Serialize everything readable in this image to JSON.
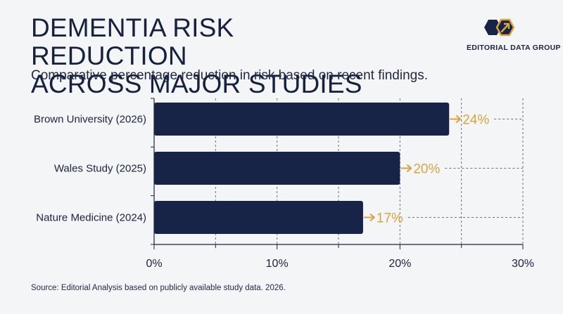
{
  "header": {
    "title_line1": "DEMENTIA RISK REDUCTION",
    "title_line2": "ACROSS MAJOR STUDIES",
    "subtitle": "Comparative percentage reduction in risk based on recent findings."
  },
  "brand": {
    "name": "EDITORIAL DATA GROUP",
    "logo_icon": "hexagon-arrow-icon"
  },
  "footer": {
    "source": "Source: Editorial Analysis based on publicly available study data. 2026."
  },
  "colors": {
    "bar": "#172447",
    "accent": "#d9a441",
    "grid": "#6b6f7a"
  },
  "chart_data": {
    "type": "bar",
    "orientation": "horizontal",
    "categories": [
      "Brown University (2026)",
      "Wales Study (2025)",
      "Nature Medicine (2024)"
    ],
    "values": [
      24,
      20,
      17
    ],
    "value_labels": [
      "24%",
      "20%",
      "17%"
    ],
    "xlim": [
      0,
      30
    ],
    "xticks": [
      0,
      10,
      20,
      30
    ],
    "xtick_labels": [
      "0%",
      "10%",
      "20%",
      "30%"
    ],
    "grid": true,
    "legend": "none"
  }
}
